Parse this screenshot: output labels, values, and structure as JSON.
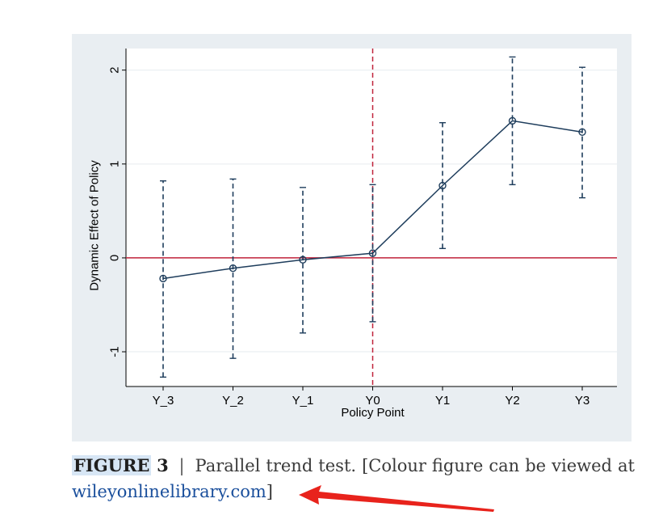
{
  "caption": {
    "figure_label": "FIGURE",
    "figure_number": "3",
    "separator": "|",
    "line1_words": [
      "Parallel",
      "trend",
      "test.",
      "[Colour",
      "figure",
      "can",
      "be",
      "viewed",
      "at"
    ],
    "link_text": "wileyonlinelibrary.com",
    "closing": "]"
  },
  "colors": {
    "panel_background": "#e9eef2",
    "plot_background": "#ffffff",
    "series": "#1e3d5c",
    "reference_line": "#c0223a",
    "annotation_arrow": "#e8231c",
    "link": "#1a4f9c"
  },
  "chart_data": {
    "type": "line",
    "title": "",
    "xlabel": "Policy Point",
    "ylabel": "Dynamic Effect of Policy",
    "categories": [
      "Y_3",
      "Y_2",
      "Y_1",
      "Y0",
      "Y1",
      "Y2",
      "Y3"
    ],
    "series": [
      {
        "values": [
          -0.22,
          -0.11,
          -0.02,
          0.05,
          0.77,
          1.46,
          1.34
        ],
        "ci_low": [
          -1.27,
          -1.07,
          -0.8,
          -0.68,
          0.1,
          0.78,
          0.64
        ],
        "ci_high": [
          0.82,
          0.84,
          0.75,
          0.78,
          1.44,
          2.14,
          2.03
        ]
      }
    ],
    "ylim": [
      -1.37,
      2.23
    ],
    "yticks": [
      -1,
      0,
      1,
      2
    ],
    "ytick_labels": [
      "-1",
      "0",
      "1",
      "2"
    ],
    "reference_lines": {
      "horizontal_y": 0,
      "vertical_category": "Y0"
    },
    "grid": true,
    "legend": "none"
  }
}
